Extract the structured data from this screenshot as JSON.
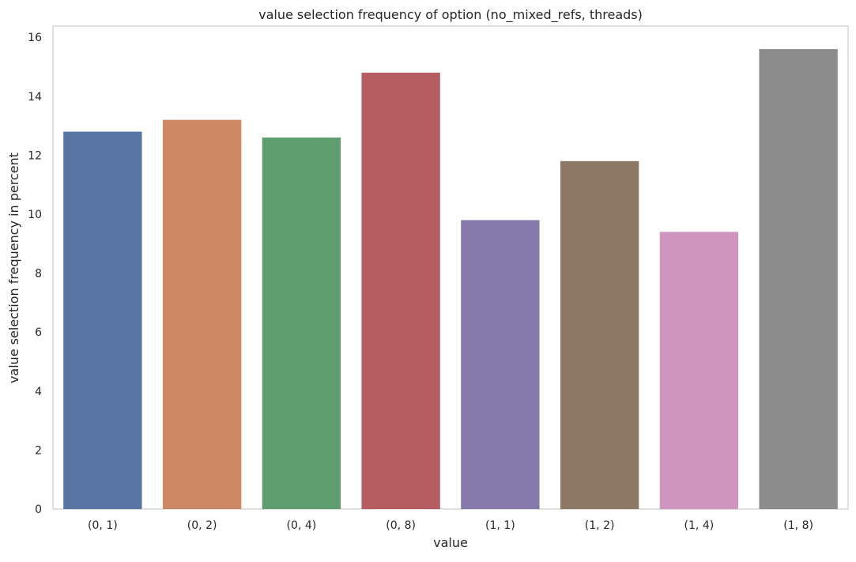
{
  "chart_data": {
    "type": "bar",
    "title": "value selection frequency of option (no_mixed_refs, threads)",
    "xlabel": "value",
    "ylabel": "value selection frequency in percent",
    "categories": [
      "(0, 1)",
      "(0, 2)",
      "(0, 4)",
      "(0, 8)",
      "(1, 1)",
      "(1, 2)",
      "(1, 4)",
      "(1, 8)"
    ],
    "values": [
      12.8,
      13.2,
      12.6,
      14.8,
      9.8,
      11.8,
      9.4,
      15.6
    ],
    "colors": [
      "#5875a4",
      "#cc8963",
      "#5f9e6e",
      "#b55d60",
      "#857aab",
      "#8d7866",
      "#d095bf",
      "#8c8c8c"
    ],
    "ylim": [
      0,
      16.38
    ],
    "yticks": [
      0,
      2,
      4,
      6,
      8,
      10,
      12,
      14,
      16
    ],
    "grid": false,
    "legend": "none"
  }
}
